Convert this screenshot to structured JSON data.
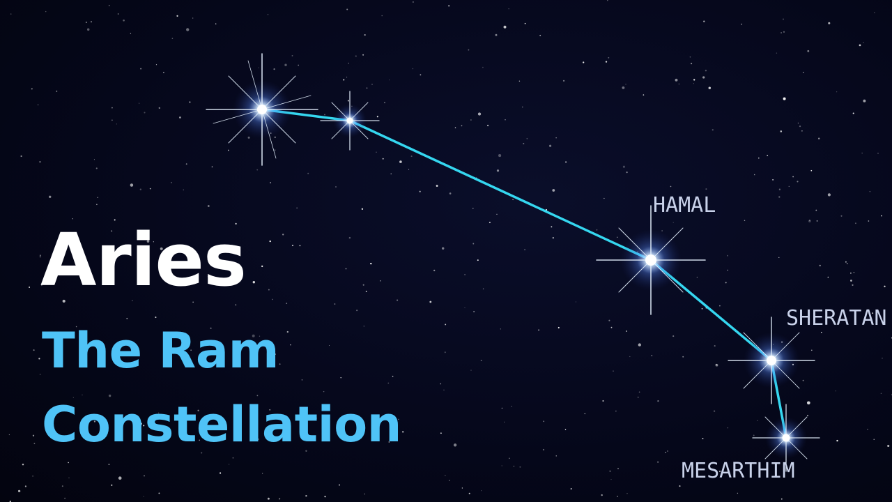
{
  "title": {
    "main": "Aries",
    "subtitle_line1": "The Ram",
    "subtitle_line2": "Constellation"
  },
  "constellation": {
    "name": "Aries",
    "stars": [
      {
        "name": "star-1",
        "label": ""
      },
      {
        "name": "star-2",
        "label": ""
      },
      {
        "name": "hamal",
        "label": "HAMAL"
      },
      {
        "name": "sheratan",
        "label": "SHERATAN"
      },
      {
        "name": "mesarthim",
        "label": "MESARTHIM"
      }
    ]
  },
  "colors": {
    "background": "#05071a",
    "title_main": "#ffffff",
    "subtitle": "#4fc3f7",
    "constellation_line": "#35d7f0",
    "label": "#c9d2ea"
  }
}
